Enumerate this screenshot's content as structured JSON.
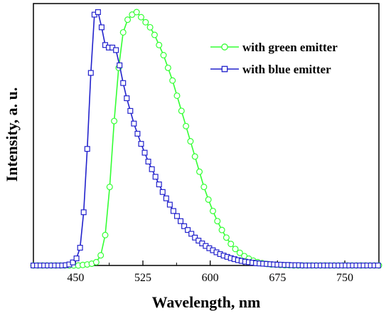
{
  "chart_data": {
    "type": "line",
    "title": "",
    "xlabel": "Wavelength, nm",
    "ylabel": "Intensity, a. u.",
    "xlim": [
      403,
      788
    ],
    "ylim": [
      0,
      1.0
    ],
    "x_ticks": [
      450,
      525,
      600,
      675,
      750
    ],
    "x_tick_labels": [
      "450",
      "525",
      "600",
      "675",
      "750"
    ],
    "y_ticks_shown": false,
    "grid": false,
    "legend_position": "top-right",
    "series": [
      {
        "name": "with green emitter",
        "color": "#33ff33",
        "marker": "circle",
        "x": [
          403,
          408,
          413,
          418,
          423,
          428,
          433,
          438,
          443,
          448,
          453,
          458,
          463,
          468,
          473,
          478,
          483,
          488,
          493,
          498,
          503,
          508,
          513,
          518,
          523,
          528,
          533,
          538,
          543,
          548,
          553,
          558,
          563,
          568,
          573,
          578,
          583,
          588,
          593,
          598,
          603,
          608,
          613,
          618,
          623,
          628,
          633,
          638,
          643,
          648,
          653,
          658,
          663,
          668,
          673,
          678,
          683,
          688,
          693,
          698,
          703,
          708,
          713,
          718,
          723,
          728,
          733,
          738,
          743,
          748,
          753,
          758,
          763,
          768,
          773,
          778,
          783,
          788
        ],
        "values": [
          0,
          0,
          0,
          0,
          0,
          0,
          0,
          0,
          0,
          0,
          0,
          0.002,
          0.004,
          0.007,
          0.013,
          0.04,
          0.12,
          0.31,
          0.57,
          0.78,
          0.92,
          0.97,
          0.99,
          1.0,
          0.98,
          0.96,
          0.94,
          0.91,
          0.87,
          0.83,
          0.78,
          0.73,
          0.67,
          0.61,
          0.55,
          0.49,
          0.43,
          0.37,
          0.31,
          0.26,
          0.215,
          0.175,
          0.14,
          0.11,
          0.085,
          0.065,
          0.05,
          0.037,
          0.027,
          0.019,
          0.013,
          0.009,
          0.006,
          0.004,
          0.003,
          0.002,
          0.001,
          0.001,
          0,
          0,
          0,
          0,
          0,
          0,
          0,
          0,
          0,
          0,
          0,
          0,
          0,
          0,
          0,
          0,
          0,
          0,
          0,
          0
        ]
      },
      {
        "name": "with blue emitter",
        "color": "#2222cc",
        "marker": "square",
        "x": [
          403,
          407,
          411,
          415,
          419,
          423,
          427,
          431,
          435,
          439,
          443,
          447,
          451,
          455,
          459,
          463,
          467,
          471,
          475,
          479,
          483,
          487,
          491,
          495,
          499,
          503,
          507,
          511,
          515,
          519,
          523,
          527,
          531,
          535,
          539,
          543,
          547,
          551,
          555,
          559,
          563,
          567,
          571,
          575,
          579,
          583,
          587,
          591,
          595,
          599,
          603,
          607,
          611,
          615,
          619,
          623,
          627,
          631,
          635,
          639,
          643,
          647,
          651,
          655,
          659,
          663,
          667,
          671,
          675,
          679,
          683,
          687,
          691,
          695,
          699,
          703,
          707,
          711,
          715,
          719,
          723,
          727,
          731,
          735,
          739,
          743,
          747,
          751,
          755,
          759,
          763,
          767,
          771,
          775,
          779,
          783,
          787
        ],
        "values": [
          0,
          0,
          0,
          0,
          0,
          0,
          0,
          0,
          0,
          0.001,
          0.004,
          0.012,
          0.028,
          0.07,
          0.21,
          0.46,
          0.76,
          0.99,
          1.0,
          0.94,
          0.87,
          0.86,
          0.86,
          0.85,
          0.79,
          0.72,
          0.66,
          0.61,
          0.56,
          0.52,
          0.48,
          0.445,
          0.41,
          0.38,
          0.35,
          0.32,
          0.29,
          0.265,
          0.24,
          0.215,
          0.195,
          0.175,
          0.155,
          0.14,
          0.125,
          0.11,
          0.098,
          0.087,
          0.077,
          0.068,
          0.06,
          0.052,
          0.045,
          0.039,
          0.034,
          0.029,
          0.025,
          0.021,
          0.018,
          0.015,
          0.013,
          0.011,
          0.009,
          0.008,
          0.007,
          0.006,
          0.005,
          0.004,
          0.003,
          0.003,
          0.002,
          0.002,
          0.001,
          0.001,
          0.001,
          0,
          0,
          0,
          0,
          0,
          0,
          0,
          0,
          0,
          0,
          0,
          0,
          0,
          0,
          0,
          0,
          0,
          0,
          0,
          0,
          0,
          0
        ]
      }
    ]
  }
}
